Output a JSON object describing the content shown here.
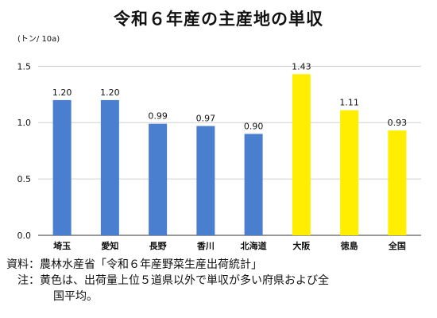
{
  "title": "令和６年産の主産地の単収",
  "unit": "(トン/ 10a)",
  "chart_data": {
    "type": "bar",
    "categories": [
      "埼玉",
      "愛知",
      "長野",
      "香川",
      "北海道",
      "大阪",
      "徳島",
      "全国"
    ],
    "values": [
      1.2,
      1.2,
      0.99,
      0.97,
      0.9,
      1.43,
      1.11,
      0.93
    ],
    "data_labels": [
      "1.20",
      "1.20",
      "0.99",
      "0.97",
      "0.90",
      "1.43",
      "1.11",
      "0.93"
    ],
    "bar_colors": [
      "#4a7fd0",
      "#4a7fd0",
      "#4a7fd0",
      "#4a7fd0",
      "#4a7fd0",
      "#ffee00",
      "#ffee00",
      "#ffee00"
    ],
    "ylim": [
      0,
      1.7
    ],
    "yticks": [
      0,
      0.5,
      1.0,
      1.5
    ],
    "ytick_labels": [
      "0.0",
      "0.5",
      "1.0",
      "1.5"
    ],
    "grid": true,
    "legend": "none"
  },
  "notes": {
    "source_label": "資料：",
    "source_text": "農林水産省「令和６年産野菜生産出荷統計」",
    "note_label": "注：",
    "note_line1": "黄色は、出荷量上位５道県以外で単収が多い府県および全",
    "note_line2": "国平均。"
  }
}
